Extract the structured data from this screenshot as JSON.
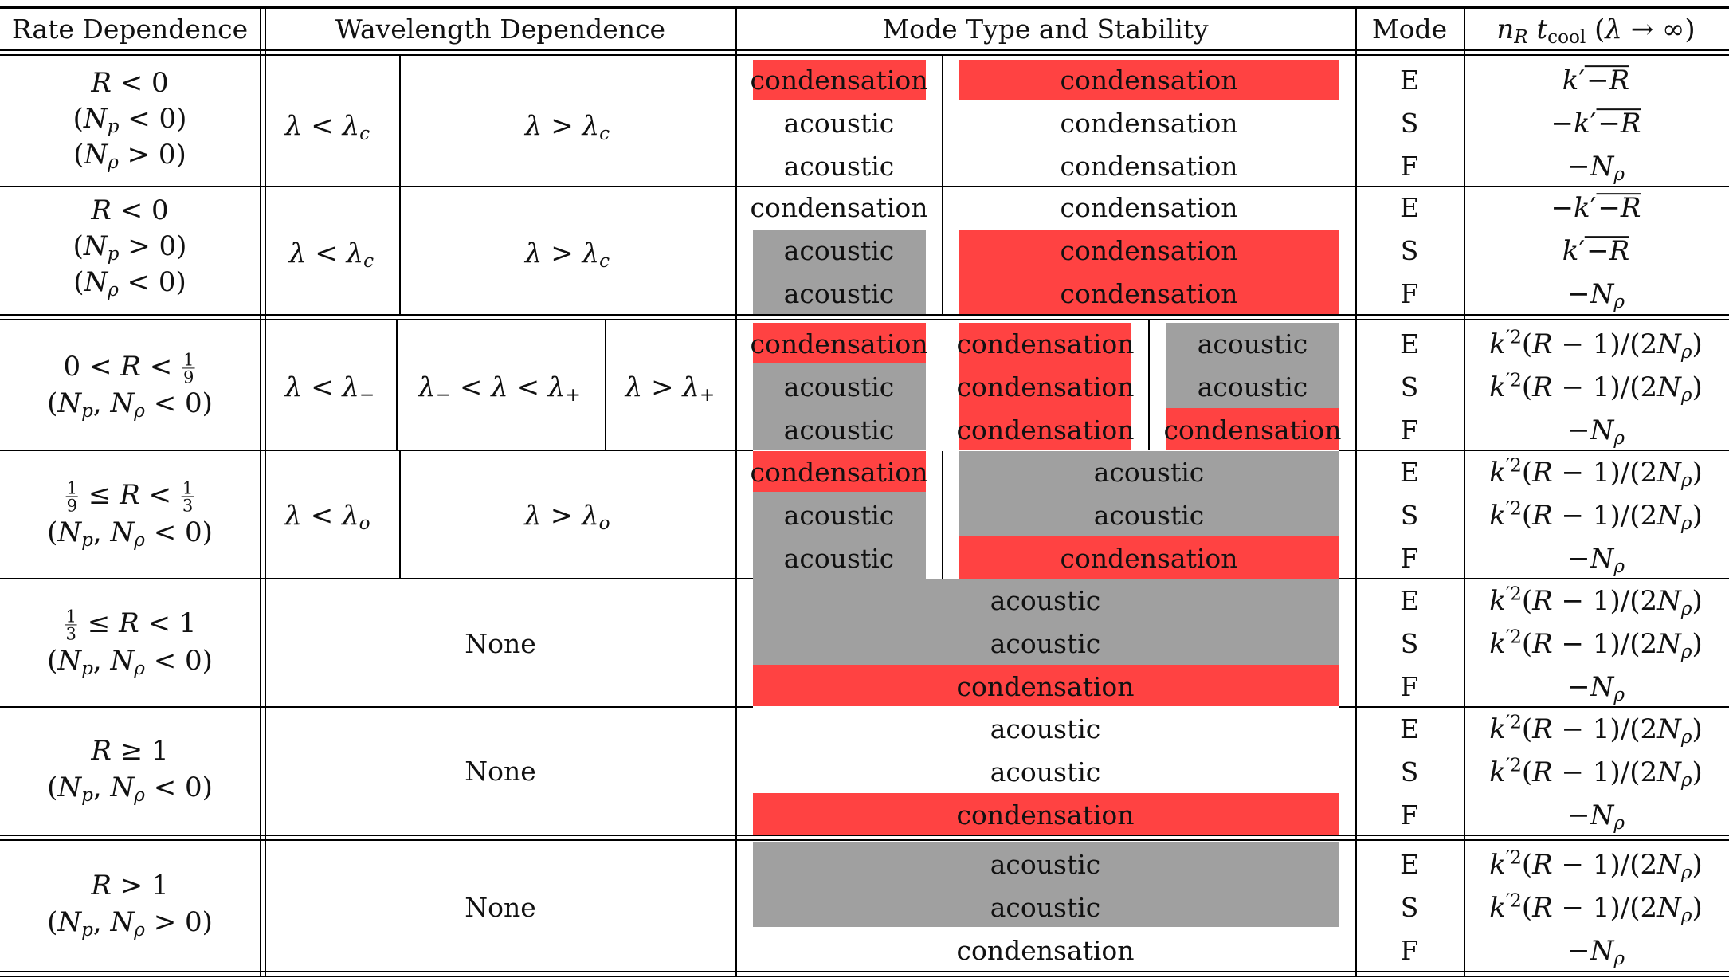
{
  "headers": {
    "rate": "Rate Dependence",
    "wavelength": "Wavelength Dependence",
    "mode_type": "Mode Type and Stability",
    "mode": "Mode",
    "growth": "n_R t_cool (λ → ∞)"
  },
  "legend_colors": {
    "unstable": "#ff4242",
    "overstable": "#a0a0a0",
    "stable": "#ffffff"
  },
  "mode_words": {
    "condensation": "condensation",
    "acoustic": "acoustic"
  },
  "mode_letters": [
    "E",
    "S",
    "F"
  ],
  "rows": [
    {
      "rate": [
        "R < 0",
        "(N_p < 0)",
        "(N_ρ > 0)"
      ],
      "wavelength": [
        "λ < λ_c",
        "λ > λ_c"
      ],
      "cells": [
        [
          {
            "t": "condensation",
            "c": "red"
          },
          {
            "t": "condensation",
            "c": "red"
          }
        ],
        [
          {
            "t": "acoustic",
            "c": "none"
          },
          {
            "t": "condensation",
            "c": "none"
          }
        ],
        [
          {
            "t": "acoustic",
            "c": "none"
          },
          {
            "t": "condensation",
            "c": "none"
          }
        ]
      ],
      "growth": [
        "k′√(−R)",
        "−k′√(−R)",
        "−N_ρ"
      ]
    },
    {
      "rate": [
        "R < 0",
        "(N_p > 0)",
        "(N_ρ < 0)"
      ],
      "wavelength": [
        "λ < λ_c",
        "λ > λ_c"
      ],
      "cells": [
        [
          {
            "t": "condensation",
            "c": "none"
          },
          {
            "t": "condensation",
            "c": "none"
          }
        ],
        [
          {
            "t": "acoustic",
            "c": "gray"
          },
          {
            "t": "condensation",
            "c": "red"
          }
        ],
        [
          {
            "t": "acoustic",
            "c": "gray"
          },
          {
            "t": "condensation",
            "c": "red"
          }
        ]
      ],
      "growth": [
        "−k′√(−R)",
        "k′√(−R)",
        "−N_ρ"
      ]
    },
    {
      "rate": [
        "0 < R < 1/9",
        "(N_p, N_ρ < 0)"
      ],
      "wavelength": [
        "λ < λ_−",
        "λ_− < λ < λ_+",
        "λ > λ_+"
      ],
      "cells": [
        [
          {
            "t": "condensation",
            "c": "red"
          },
          {
            "t": "condensation",
            "c": "red"
          },
          {
            "t": "acoustic",
            "c": "gray"
          }
        ],
        [
          {
            "t": "acoustic",
            "c": "gray"
          },
          {
            "t": "condensation",
            "c": "red"
          },
          {
            "t": "acoustic",
            "c": "gray"
          }
        ],
        [
          {
            "t": "acoustic",
            "c": "gray"
          },
          {
            "t": "condensation",
            "c": "red"
          },
          {
            "t": "condensation",
            "c": "red"
          }
        ]
      ],
      "growth": [
        "k′²(R − 1)/(2N_ρ)",
        "k′²(R − 1)/(2N_ρ)",
        "−N_ρ"
      ]
    },
    {
      "rate": [
        "1/9 ≤ R < 1/3",
        "(N_p, N_ρ < 0)"
      ],
      "wavelength": [
        "λ < λ_o",
        "λ > λ_o"
      ],
      "cells": [
        [
          {
            "t": "condensation",
            "c": "red"
          },
          {
            "t": "acoustic",
            "c": "gray"
          }
        ],
        [
          {
            "t": "acoustic",
            "c": "gray"
          },
          {
            "t": "acoustic",
            "c": "gray"
          }
        ],
        [
          {
            "t": "acoustic",
            "c": "gray"
          },
          {
            "t": "condensation",
            "c": "red"
          }
        ]
      ],
      "growth": [
        "k′²(R − 1)/(2N_ρ)",
        "k′²(R − 1)/(2N_ρ)",
        "−N_ρ"
      ]
    },
    {
      "rate": [
        "1/3 ≤ R < 1",
        "(N_p, N_ρ < 0)"
      ],
      "wavelength": [
        "None"
      ],
      "cells": [
        [
          {
            "t": "acoustic",
            "c": "gray"
          }
        ],
        [
          {
            "t": "acoustic",
            "c": "gray"
          }
        ],
        [
          {
            "t": "condensation",
            "c": "red"
          }
        ]
      ],
      "growth": [
        "k′²(R − 1)/(2N_ρ)",
        "k′²(R − 1)/(2N_ρ)",
        "−N_ρ"
      ]
    },
    {
      "rate": [
        "R ≥ 1",
        "(N_p, N_ρ < 0)"
      ],
      "wavelength": [
        "None"
      ],
      "cells": [
        [
          {
            "t": "acoustic",
            "c": "none"
          }
        ],
        [
          {
            "t": "acoustic",
            "c": "none"
          }
        ],
        [
          {
            "t": "condensation",
            "c": "red"
          }
        ]
      ],
      "growth": [
        "k′²(R − 1)/(2N_ρ)",
        "k′²(R − 1)/(2N_ρ)",
        "−N_ρ"
      ]
    },
    {
      "rate": [
        "R > 1",
        "(N_p, N_ρ > 0)"
      ],
      "wavelength": [
        "None"
      ],
      "cells": [
        [
          {
            "t": "acoustic",
            "c": "gray"
          }
        ],
        [
          {
            "t": "acoustic",
            "c": "gray"
          }
        ],
        [
          {
            "t": "condensation",
            "c": "none"
          }
        ]
      ],
      "growth": [
        "k′²(R − 1)/(2N_ρ)",
        "k′²(R − 1)/(2N_ρ)",
        "−N_ρ"
      ]
    }
  ]
}
